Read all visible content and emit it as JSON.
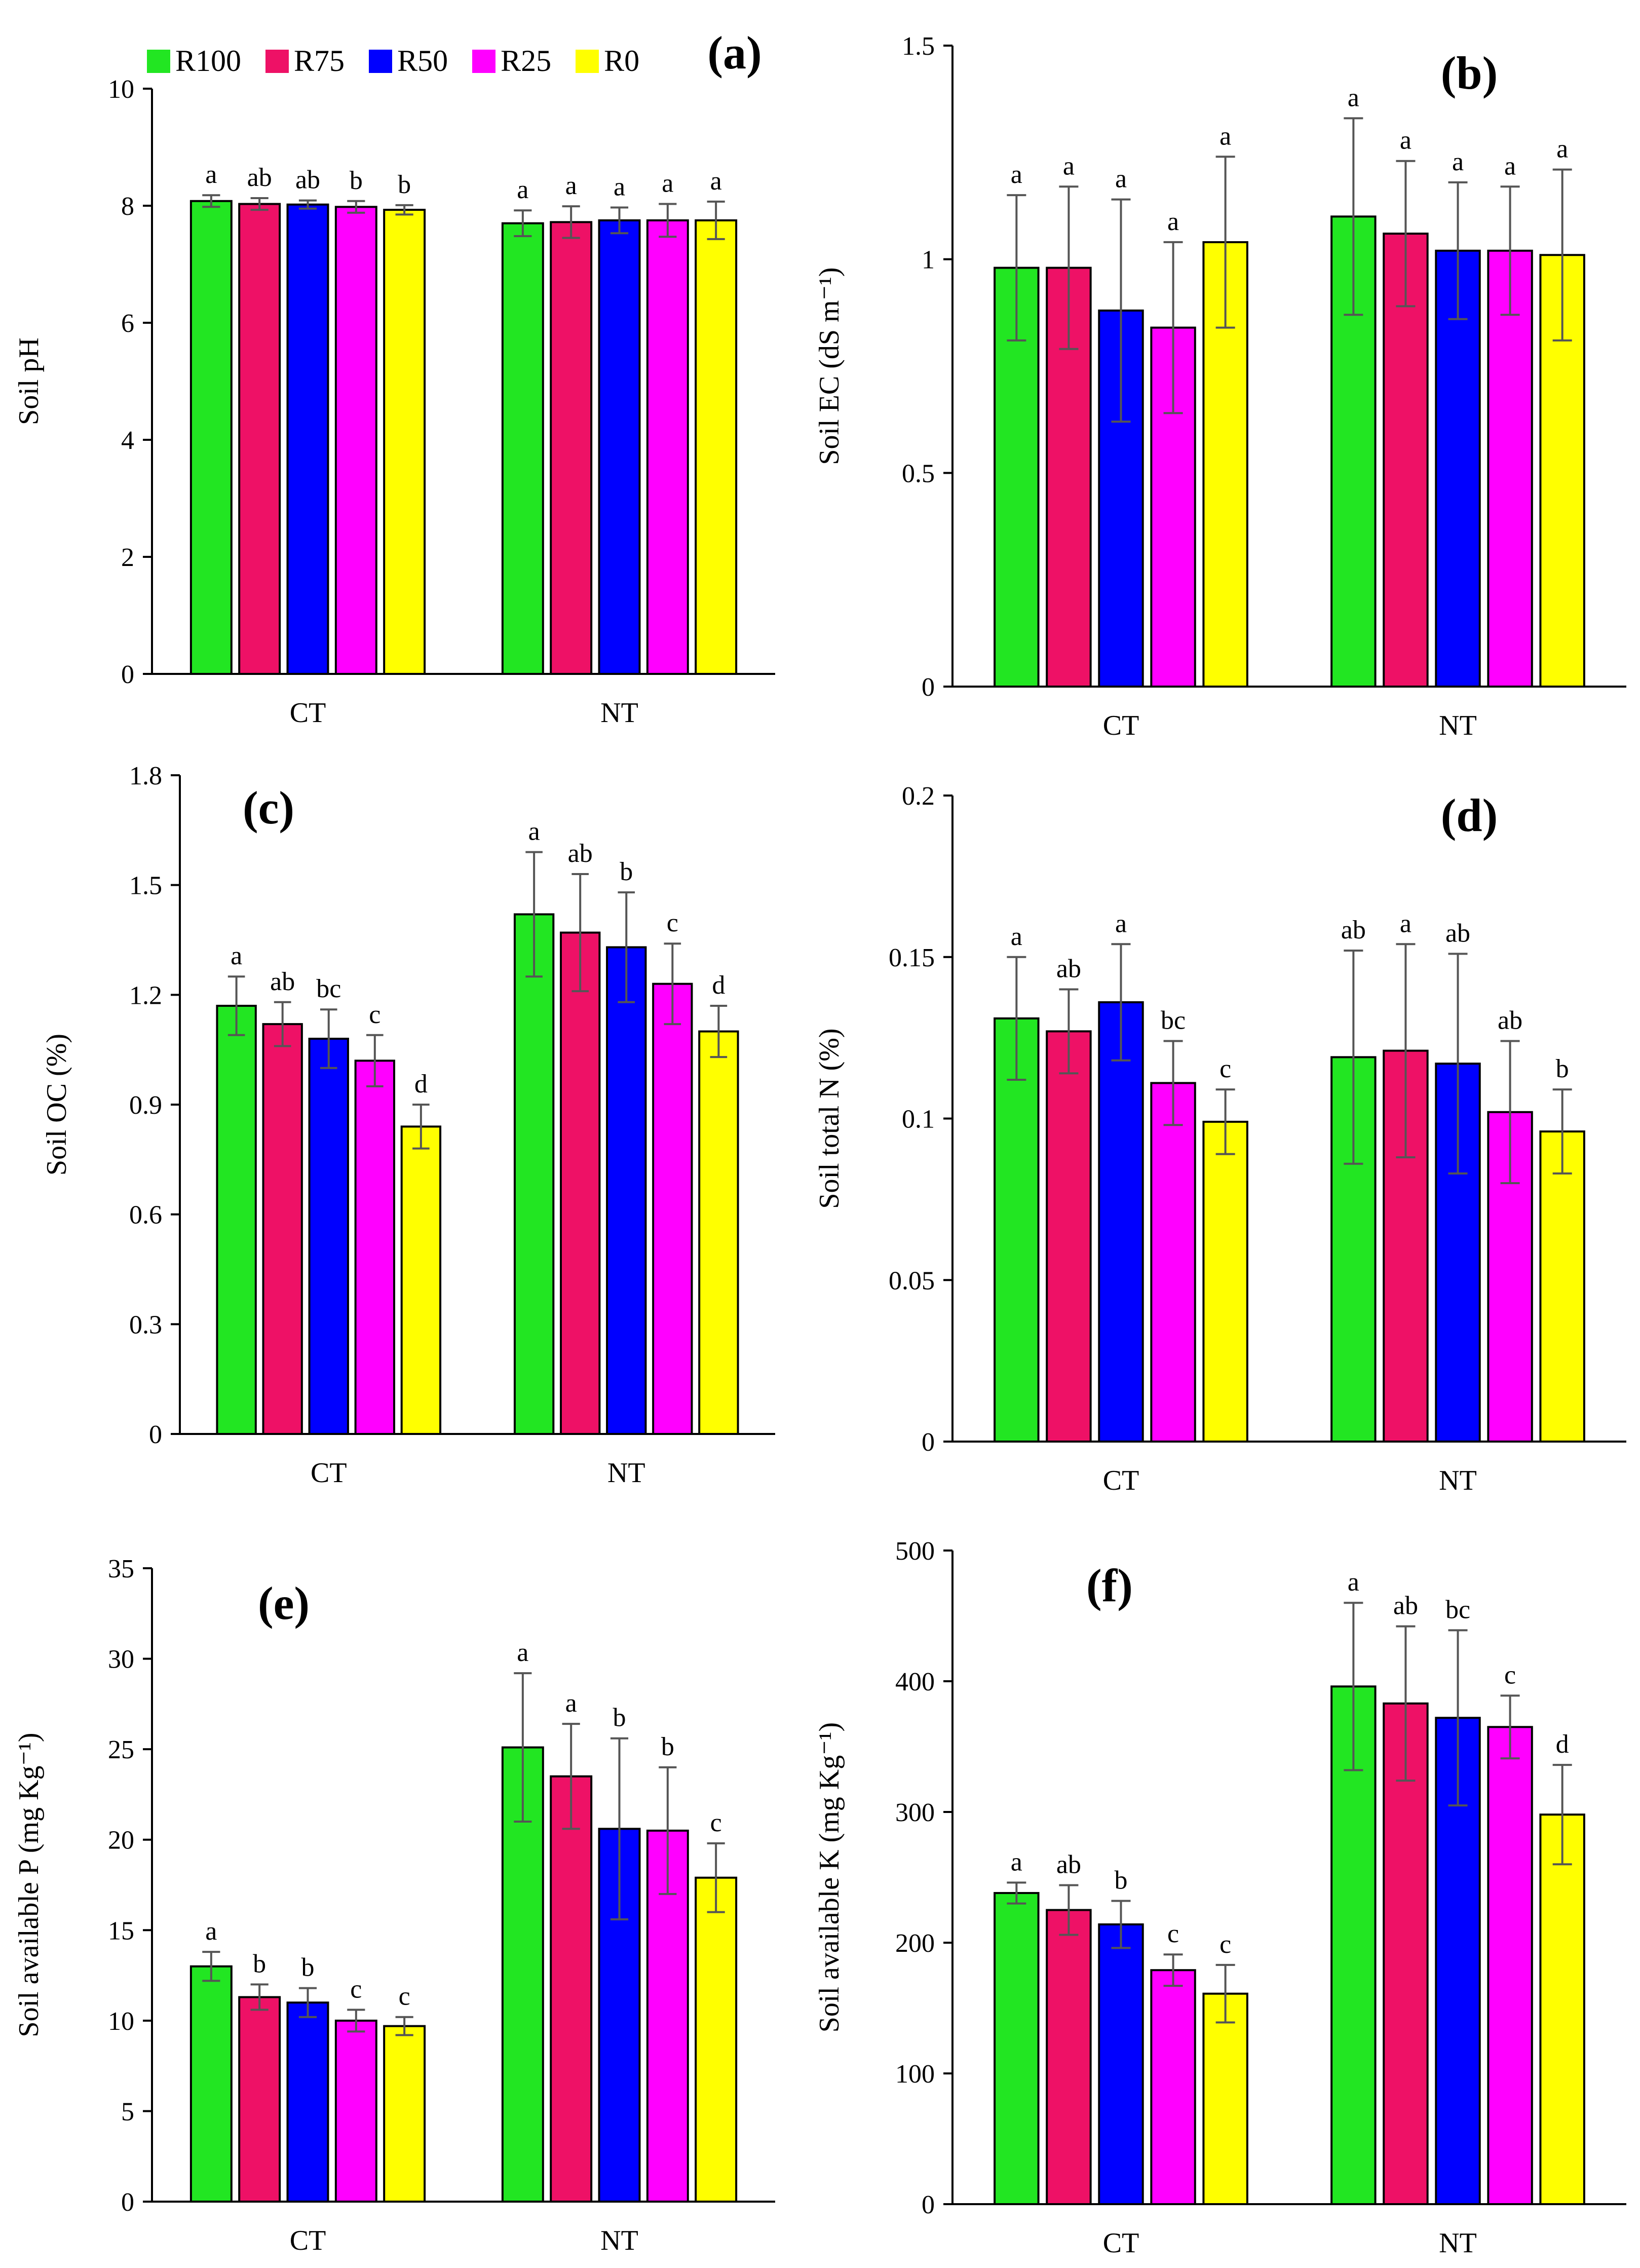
{
  "figure": {
    "legend": [
      {
        "name": "R100",
        "color": "#22e622"
      },
      {
        "name": "R75",
        "color": "#ee1166"
      },
      {
        "name": "R50",
        "color": "#0000ff"
      },
      {
        "name": "R25",
        "color": "#ff00ff"
      },
      {
        "name": "R0",
        "color": "#ffff00"
      }
    ]
  },
  "chart_data": [
    {
      "type": "bar",
      "panel": "(a)",
      "title": "(a)",
      "xlabel": "",
      "ylabel": "Soil pH",
      "categories": [
        "CT",
        "NT"
      ],
      "ylim": [
        0,
        10
      ],
      "yticks": [
        "0",
        "2",
        "4",
        "6",
        "8",
        "10"
      ],
      "series": [
        {
          "name": "R100",
          "values": [
            8.08,
            7.7
          ],
          "errors": [
            0.1,
            0.22
          ],
          "letters": [
            "a",
            "a"
          ]
        },
        {
          "name": "R75",
          "values": [
            8.03,
            7.72
          ],
          "errors": [
            0.1,
            0.27
          ],
          "letters": [
            "ab",
            "a"
          ]
        },
        {
          "name": "R50",
          "values": [
            8.02,
            7.75
          ],
          "errors": [
            0.07,
            0.22
          ],
          "letters": [
            "ab",
            "a"
          ]
        },
        {
          "name": "R25",
          "values": [
            7.98,
            7.75
          ],
          "errors": [
            0.1,
            0.28
          ],
          "letters": [
            "b",
            "a"
          ]
        },
        {
          "name": "R0",
          "values": [
            7.93,
            7.75
          ],
          "errors": [
            0.08,
            0.32
          ],
          "letters": [
            "b",
            "a"
          ]
        }
      ]
    },
    {
      "type": "bar",
      "panel": "(b)",
      "title": "(b)",
      "xlabel": "",
      "ylabel": "Soil EC  (dS m⁻¹)",
      "categories": [
        "CT",
        "NT"
      ],
      "ylim": [
        0,
        1.5
      ],
      "yticks": [
        "0",
        "0.5",
        "1",
        "1.5"
      ],
      "series": [
        {
          "name": "R100",
          "values": [
            0.98,
            1.1
          ],
          "errors": [
            0.17,
            0.23
          ],
          "letters": [
            "a",
            "a"
          ]
        },
        {
          "name": "R75",
          "values": [
            0.98,
            1.06
          ],
          "errors": [
            0.19,
            0.17
          ],
          "letters": [
            "a",
            "a"
          ]
        },
        {
          "name": "R50",
          "values": [
            0.88,
            1.02
          ],
          "errors": [
            0.26,
            0.16
          ],
          "letters": [
            "a",
            "a"
          ]
        },
        {
          "name": "R25",
          "values": [
            0.84,
            1.02
          ],
          "errors": [
            0.2,
            0.15
          ],
          "letters": [
            "a",
            "a"
          ]
        },
        {
          "name": "R0",
          "values": [
            1.04,
            1.01
          ],
          "errors": [
            0.2,
            0.2
          ],
          "letters": [
            "a",
            "a"
          ]
        }
      ]
    },
    {
      "type": "bar",
      "panel": "(c)",
      "title": "(c)",
      "xlabel": "",
      "ylabel": "Soil OC  (%)",
      "categories": [
        "CT",
        "NT"
      ],
      "ylim": [
        0,
        1.8
      ],
      "yticks": [
        "0",
        "0.3",
        "0.6",
        "0.9",
        "1.2",
        "1.5",
        "1.8"
      ],
      "series": [
        {
          "name": "R100",
          "values": [
            1.17,
            1.42
          ],
          "errors": [
            0.08,
            0.17
          ],
          "letters": [
            "a",
            "a"
          ]
        },
        {
          "name": "R75",
          "values": [
            1.12,
            1.37
          ],
          "errors": [
            0.06,
            0.16
          ],
          "letters": [
            "ab",
            "ab"
          ]
        },
        {
          "name": "R50",
          "values": [
            1.08,
            1.33
          ],
          "errors": [
            0.08,
            0.15
          ],
          "letters": [
            "bc",
            "b"
          ]
        },
        {
          "name": "R25",
          "values": [
            1.02,
            1.23
          ],
          "errors": [
            0.07,
            0.11
          ],
          "letters": [
            "c",
            "c"
          ]
        },
        {
          "name": "R0",
          "values": [
            0.84,
            1.1
          ],
          "errors": [
            0.06,
            0.07
          ],
          "letters": [
            "d",
            "d"
          ]
        }
      ]
    },
    {
      "type": "bar",
      "panel": "(d)",
      "title": "(d)",
      "xlabel": "",
      "ylabel": "Soil total N  (%)",
      "categories": [
        "CT",
        "NT"
      ],
      "ylim": [
        0,
        0.2
      ],
      "yticks": [
        "0",
        "0.05",
        "0.1",
        "0.15",
        "0.2"
      ],
      "series": [
        {
          "name": "R100",
          "values": [
            0.131,
            0.119
          ],
          "errors": [
            0.019,
            0.033
          ],
          "letters": [
            "a",
            "ab"
          ]
        },
        {
          "name": "R75",
          "values": [
            0.127,
            0.121
          ],
          "errors": [
            0.013,
            0.033
          ],
          "letters": [
            "ab",
            "a"
          ]
        },
        {
          "name": "R50",
          "values": [
            0.136,
            0.117
          ],
          "errors": [
            0.018,
            0.034
          ],
          "letters": [
            "a",
            "ab"
          ]
        },
        {
          "name": "R25",
          "values": [
            0.111,
            0.102
          ],
          "errors": [
            0.013,
            0.022
          ],
          "letters": [
            "bc",
            "ab"
          ]
        },
        {
          "name": "R0",
          "values": [
            0.099,
            0.096
          ],
          "errors": [
            0.01,
            0.013
          ],
          "letters": [
            "c",
            "b"
          ]
        }
      ]
    },
    {
      "type": "bar",
      "panel": "(e)",
      "title": "(e)",
      "xlabel": "",
      "ylabel": "Soil available  P  (mg Kg⁻¹)",
      "categories": [
        "CT",
        "NT"
      ],
      "ylim": [
        0,
        35
      ],
      "yticks": [
        "0",
        "5",
        "10",
        "15",
        "20",
        "25",
        "30",
        "35"
      ],
      "series": [
        {
          "name": "R100",
          "values": [
            13.0,
            25.1
          ],
          "errors": [
            0.8,
            4.1
          ],
          "letters": [
            "a",
            "a"
          ]
        },
        {
          "name": "R75",
          "values": [
            11.3,
            23.5
          ],
          "errors": [
            0.7,
            2.9
          ],
          "letters": [
            "b",
            "a"
          ]
        },
        {
          "name": "R50",
          "values": [
            11.0,
            20.6
          ],
          "errors": [
            0.8,
            5.0
          ],
          "letters": [
            "b",
            "b"
          ]
        },
        {
          "name": "R25",
          "values": [
            10.0,
            20.5
          ],
          "errors": [
            0.6,
            3.5
          ],
          "letters": [
            "c",
            "b"
          ]
        },
        {
          "name": "R0",
          "values": [
            9.7,
            17.9
          ],
          "errors": [
            0.5,
            1.9
          ],
          "letters": [
            "c",
            "c"
          ]
        }
      ]
    },
    {
      "type": "bar",
      "panel": "(f)",
      "title": "(f)",
      "xlabel": "",
      "ylabel": "Soil  available K (mg Kg⁻¹)",
      "categories": [
        "CT",
        "NT"
      ],
      "ylim": [
        0,
        500
      ],
      "yticks": [
        "0",
        "100",
        "200",
        "300",
        "400",
        "500"
      ],
      "series": [
        {
          "name": "R100",
          "values": [
            238,
            396
          ],
          "errors": [
            8,
            64
          ],
          "letters": [
            "a",
            "a"
          ]
        },
        {
          "name": "R75",
          "values": [
            225,
            383
          ],
          "errors": [
            19,
            59
          ],
          "letters": [
            "ab",
            "ab"
          ]
        },
        {
          "name": "R50",
          "values": [
            214,
            372
          ],
          "errors": [
            18,
            67
          ],
          "letters": [
            "b",
            "bc"
          ]
        },
        {
          "name": "R25",
          "values": [
            179,
            365
          ],
          "errors": [
            12,
            24
          ],
          "letters": [
            "c",
            "c"
          ]
        },
        {
          "name": "R0",
          "values": [
            161,
            298
          ],
          "errors": [
            22,
            38
          ],
          "letters": [
            "c",
            "d"
          ]
        }
      ]
    }
  ]
}
